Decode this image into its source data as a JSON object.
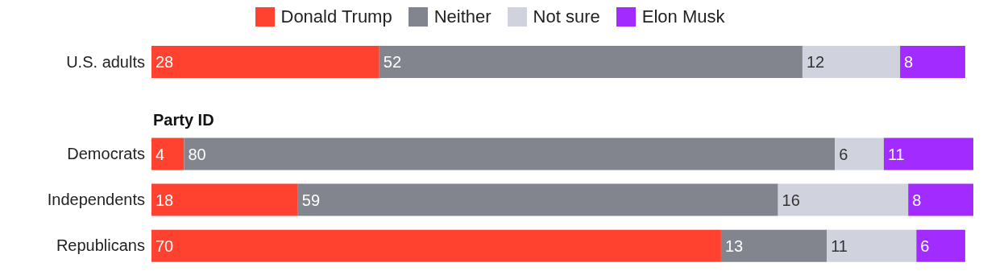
{
  "chart_data": {
    "type": "bar",
    "orientation": "horizontal",
    "stacked": true,
    "data_labels": true,
    "legend": "top",
    "tick_labels": "y",
    "categories": [
      "U.S. adults",
      null,
      "Democrats",
      "Independents",
      "Republicans"
    ],
    "series": [
      {
        "name": "Donald Trump",
        "color": "#ff4130",
        "values": [
          28,
          null,
          4,
          18,
          70
        ]
      },
      {
        "name": "Neither",
        "color": "#82848e",
        "values": [
          52,
          null,
          80,
          59,
          13
        ]
      },
      {
        "name": "Not sure",
        "color": "#d0d3dd",
        "values": [
          12,
          null,
          6,
          16,
          11
        ]
      },
      {
        "name": "Elon Musk",
        "color": "#a22bff",
        "values": [
          8,
          null,
          11,
          8,
          6
        ]
      }
    ],
    "annotations": [
      "Party ID"
    ]
  }
}
